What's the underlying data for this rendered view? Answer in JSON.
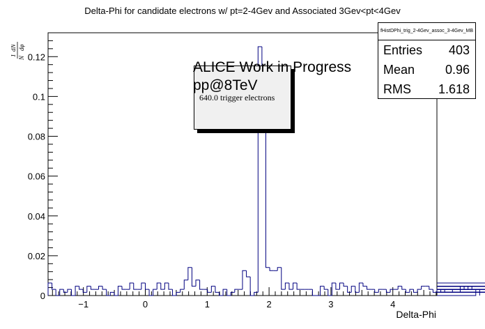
{
  "title": "Delta-Phi for candidate electrons w/ pt=2-4Gev and Associated 3Gev<pt<4Gev",
  "stats": {
    "name": "fHistDPhi_trig_2-4Gev_assoc_3-4Gev_MB",
    "rows": [
      {
        "label": "Entries",
        "value": "403"
      },
      {
        "label": "Mean",
        "value": "0.96"
      },
      {
        "label": "RMS",
        "value": "1.618"
      }
    ]
  },
  "annotation": {
    "line1": "ALICE Work in Progress",
    "line2": "pp@8TeV",
    "line3": "640.0 trigger electrons"
  },
  "chart_data": {
    "type": "bar",
    "style": "step-histogram",
    "title": "Delta-Phi for candidate electrons w/ pt=2-4Gev and Associated 3Gev<pt<4Gev",
    "xlabel": "Delta-Phi",
    "ylabel": "1/N_trig dN/dφ",
    "xlim": [
      -1.5708,
      4.7124
    ],
    "ylim": [
      0,
      0.132
    ],
    "xticks": [
      -1,
      0,
      1,
      2,
      3,
      4
    ],
    "xtick_labels": [
      "−1",
      "0",
      "1",
      "2",
      "3",
      "4"
    ],
    "yticks": [
      0,
      0.02,
      0.04,
      0.06,
      0.08,
      0.1,
      0.12
    ],
    "ytick_labels": [
      "0",
      "0.02",
      "0.04",
      "0.06",
      "0.08",
      "0.1",
      "0.12"
    ],
    "bin_width": 0.06283,
    "values": [
      0.0063,
      0.0031,
      0.0,
      0.0031,
      0.0016,
      0.0031,
      0.0,
      0.0047,
      0.0031,
      0.0016,
      0.0047,
      0.0031,
      0.0031,
      0.0047,
      0.0031,
      0.0,
      0.0016,
      0.0,
      0.0047,
      0.0031,
      0.0031,
      0.0063,
      0.0031,
      0.0031,
      0.0063,
      0.0031,
      0.0,
      0.0031,
      0.0063,
      0.0031,
      0.0063,
      0.0031,
      0.0,
      0.0016,
      0.0031,
      0.0078,
      0.0141,
      0.0047,
      0.0078,
      0.0031,
      0.0031,
      0.0016,
      0.0047,
      0.0016,
      0.0,
      0.0031,
      0.0,
      0.0016,
      0.0031,
      0.0031,
      0.0125,
      0.0094,
      0.0,
      0.0016,
      0.125,
      0.1,
      0.0141,
      0.0125,
      0.0125,
      0.0141,
      0.0031,
      0.0063,
      0.0031,
      0.0063,
      0.0031,
      0.0031,
      0.0031,
      0.0031,
      0.0,
      0.0,
      0.0047,
      0.0031,
      0.0,
      0.0063,
      0.0031,
      0.0063,
      0.0047,
      0.0016,
      0.0047,
      0.0016,
      0.0063,
      0.0047,
      0.0031,
      0.0031,
      0.0016,
      0.0031,
      0.0031,
      0.0016,
      0.0031,
      0.0031,
      0.0047,
      0.0031,
      0.0016,
      0.0031,
      0.0016,
      0.0031,
      0.0047,
      0.0047,
      0.0031,
      0.0016,
      0.0031,
      0.0016,
      0.0031,
      0.0031,
      0.0016,
      0.0016,
      0.0047,
      0.0031,
      0.0047,
      0.0031,
      0.0,
      0.0031,
      0.0031,
      0.0063,
      0.0031,
      0.0047,
      0.0031,
      0.0047,
      0.0063,
      0.0016,
      0.0031,
      0.0047,
      0.0031,
      0.0063,
      0.0031,
      0.0047,
      0.0016,
      0.0047,
      0.0031,
      0.0016,
      0.0016,
      0.0031,
      0.0047,
      0.0016,
      0.0031,
      0.0063,
      0.0031,
      0.0016,
      0.0031,
      0.0047,
      0.0016,
      0.0031,
      0.0047,
      0.0016,
      0.0031,
      0.0031,
      0.0031,
      0.0047,
      0.0016,
      0.0047,
      0.0063,
      0.0016,
      0.0031,
      0.0047,
      0.0031,
      0.0016,
      0.0031,
      0.0016,
      0.0047,
      0.0031,
      0.0031,
      0.0063,
      0.0047,
      0.0016,
      0.0031,
      0.0016,
      0.0031,
      0.0031,
      0.0047,
      0.0016,
      0.0031,
      0.0031,
      0.0016,
      0.0031,
      0.0031,
      0.0016,
      0.0031,
      0.0047,
      0.0031,
      0.0031,
      0.0063,
      0.0047,
      0.0031,
      0.0016,
      0.0031,
      0.0047,
      0.0031,
      0.0031,
      0.0047,
      0.0047,
      0.0031,
      0.0031,
      0.0047,
      0.0016,
      0.0031,
      0.0031,
      0.0031,
      0.0031,
      0.0047,
      0.0031,
      0.0031,
      0.0016,
      0.0047,
      0.0031,
      0.0031,
      0.0031,
      0.0016,
      0.0031,
      0.0047,
      0.0031,
      0.0016,
      0.0047,
      0.0031,
      0.0031,
      0.0016,
      0.0047,
      0.0031,
      0.0063,
      0.0047,
      0.0031,
      0.0047,
      0.0031,
      0.0063,
      0.0047,
      0.0031,
      0.0016,
      0.0031,
      0.0031,
      0.0063,
      0.0031,
      0.0047,
      0.0031,
      0.0016,
      0.0031,
      0.0047,
      0.0031,
      0.0016,
      0.0031,
      0.0063,
      0.0047,
      0.0031,
      0.0016,
      0.0031
    ],
    "line_color": "#000080",
    "grid": false
  }
}
